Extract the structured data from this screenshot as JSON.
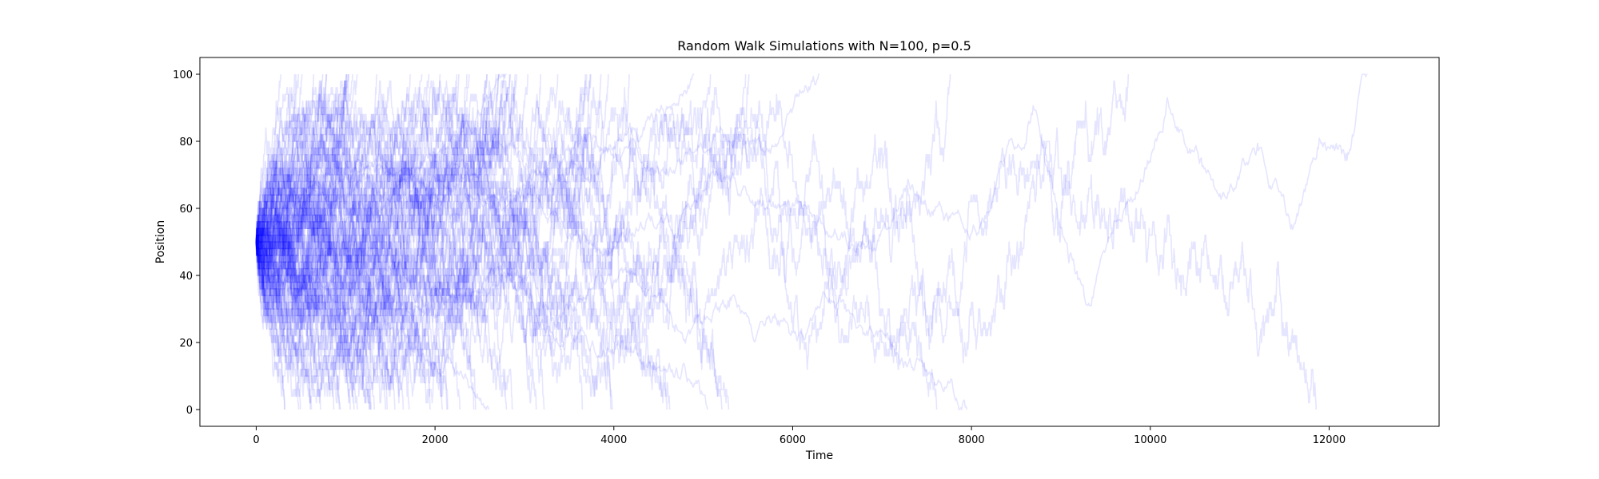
{
  "chart_data": {
    "type": "line",
    "title": "Random Walk Simulations with N=100, p=0.5",
    "xlabel": "Time",
    "ylabel": "Position",
    "xlim": [
      -630,
      13230
    ],
    "ylim": [
      -5,
      105
    ],
    "xticks": [
      0,
      2000,
      4000,
      6000,
      8000,
      10000,
      12000
    ],
    "yticks": [
      0,
      20,
      40,
      60,
      80,
      100
    ],
    "grid": false,
    "legend": "none",
    "line_color": "#0000ff",
    "line_alpha": 0.1,
    "N": 100,
    "p": 0.5,
    "num_walks": 100,
    "start_position": 50,
    "absorbing_barriers": [
      0,
      100
    ],
    "series": [
      {
        "end_time": 12430,
        "end_position": 100,
        "points": [
          [
            0,
            50
          ],
          [
            500,
            62
          ],
          [
            1200,
            70
          ],
          [
            2200,
            58
          ],
          [
            3100,
            66
          ],
          [
            4200,
            52
          ],
          [
            5200,
            70
          ],
          [
            6200,
            60
          ],
          [
            6900,
            48
          ],
          [
            7300,
            68
          ],
          [
            7700,
            58
          ],
          [
            8200,
            60
          ],
          [
            8700,
            90
          ],
          [
            9100,
            45
          ],
          [
            9300,
            30
          ],
          [
            9600,
            55
          ],
          [
            10000,
            75
          ],
          [
            10200,
            92
          ],
          [
            10600,
            72
          ],
          [
            10800,
            62
          ],
          [
            11200,
            78
          ],
          [
            11600,
            55
          ],
          [
            11900,
            80
          ],
          [
            12200,
            75
          ],
          [
            12430,
            100
          ]
        ]
      },
      {
        "end_time": 7950,
        "end_position": 0,
        "points": [
          [
            0,
            50
          ],
          [
            400,
            35
          ],
          [
            1000,
            42
          ],
          [
            1800,
            30
          ],
          [
            2600,
            40
          ],
          [
            3300,
            28
          ],
          [
            4000,
            38
          ],
          [
            4700,
            24
          ],
          [
            5300,
            32
          ],
          [
            6000,
            22
          ],
          [
            6600,
            30
          ],
          [
            7100,
            20
          ],
          [
            7500,
            12
          ],
          [
            7950,
            0
          ]
        ]
      },
      {
        "end_time": 6300,
        "end_position": 100,
        "points": [
          [
            0,
            50
          ],
          [
            600,
            68
          ],
          [
            1400,
            60
          ],
          [
            2200,
            74
          ],
          [
            3000,
            66
          ],
          [
            3800,
            80
          ],
          [
            4500,
            72
          ],
          [
            5200,
            84
          ],
          [
            5800,
            78
          ],
          [
            6300,
            100
          ]
        ]
      },
      {
        "end_time": 5050,
        "end_position": 0,
        "points": [
          [
            0,
            50
          ],
          [
            500,
            40
          ],
          [
            1300,
            48
          ],
          [
            2100,
            32
          ],
          [
            2900,
            40
          ],
          [
            3600,
            22
          ],
          [
            4300,
            16
          ],
          [
            4800,
            12
          ],
          [
            5050,
            0
          ]
        ]
      },
      {
        "end_time": 4900,
        "end_position": 100,
        "points": [
          [
            0,
            50
          ],
          [
            500,
            60
          ],
          [
            1200,
            72
          ],
          [
            2000,
            64
          ],
          [
            2800,
            78
          ],
          [
            3500,
            70
          ],
          [
            4200,
            84
          ],
          [
            4900,
            100
          ]
        ]
      },
      {
        "end_time": 2800,
        "end_position": 100,
        "points": [
          [
            0,
            50
          ],
          [
            400,
            62
          ],
          [
            1000,
            74
          ],
          [
            1700,
            68
          ],
          [
            2300,
            82
          ],
          [
            2800,
            100
          ]
        ]
      },
      {
        "end_time": 2600,
        "end_position": 0,
        "points": [
          [
            0,
            50
          ],
          [
            500,
            36
          ],
          [
            1100,
            28
          ],
          [
            1800,
            18
          ],
          [
            2300,
            10
          ],
          [
            2600,
            0
          ]
        ]
      }
    ]
  }
}
